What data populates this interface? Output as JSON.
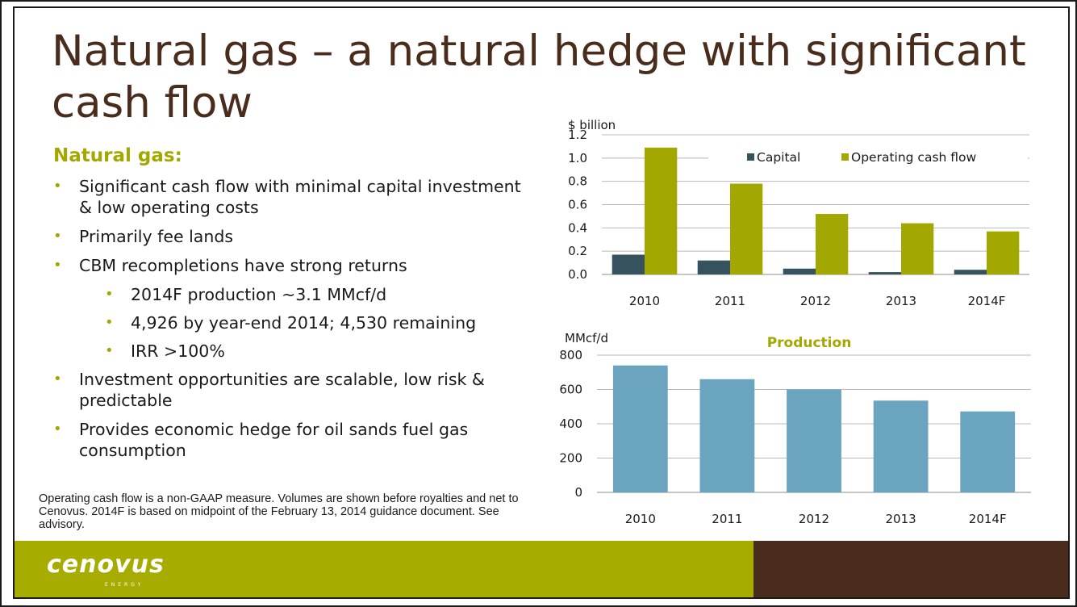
{
  "title": "Natural gas – a natural hedge with significant cash flow",
  "subhead": "Natural gas:",
  "bullets": [
    {
      "level": 1,
      "text": "Significant cash flow with minimal capital investment & low operating costs"
    },
    {
      "level": 1,
      "text": "Primarily fee lands"
    },
    {
      "level": 1,
      "text": "CBM recompletions have strong returns"
    },
    {
      "level": 2,
      "text": "2014F production ~3.1 MMcf/d"
    },
    {
      "level": 2,
      "text": "4,926 by year-end 2014; 4,530 remaining"
    },
    {
      "level": 2,
      "text": "IRR >100%"
    },
    {
      "level": 1,
      "text": "Investment opportunities are scalable, low risk & predictable"
    },
    {
      "level": 1,
      "text": "Provides economic hedge for oil sands fuel gas consumption"
    }
  ],
  "footnote": "Operating cash flow is a non-GAAP measure. Volumes are shown before royalties and net to Cenovus. 2014F is based on midpoint of the February 13, 2014 guidance document. See advisory.",
  "logo": {
    "text": "cenovus",
    "sub": "ENERGY"
  },
  "colors": {
    "title": "#4a2c1c",
    "accent_green": "#a3a800",
    "capital": "#35525e",
    "operating_cash_flow": "#a3a800",
    "production": "#6aa4bf",
    "footer_green": "#a6ac00",
    "footer_brown": "#4a2c1c"
  },
  "chart_data": [
    {
      "type": "bar",
      "title": "",
      "ylabel": "$ billion",
      "categories": [
        "2010",
        "2011",
        "2012",
        "2013",
        "2014F"
      ],
      "series": [
        {
          "name": "Capital",
          "values": [
            0.17,
            0.12,
            0.05,
            0.02,
            0.04
          ]
        },
        {
          "name": "Operating cash flow",
          "values": [
            1.09,
            0.78,
            0.52,
            0.44,
            0.37
          ]
        }
      ],
      "ylim": [
        0,
        1.2
      ],
      "yticks": [
        "0.0",
        "0.2",
        "0.4",
        "0.6",
        "0.8",
        "1.0",
        "1.2"
      ],
      "grid": true,
      "legend": "top-right"
    },
    {
      "type": "bar",
      "title": "Production",
      "ylabel": "MMcf/d",
      "categories": [
        "2010",
        "2011",
        "2012",
        "2013",
        "2014F"
      ],
      "series": [
        {
          "values": [
            740,
            660,
            600,
            535,
            472
          ]
        }
      ],
      "ylim": [
        0,
        800
      ],
      "yticks": [
        "0",
        "200",
        "400",
        "600",
        "800"
      ],
      "grid": true
    }
  ]
}
